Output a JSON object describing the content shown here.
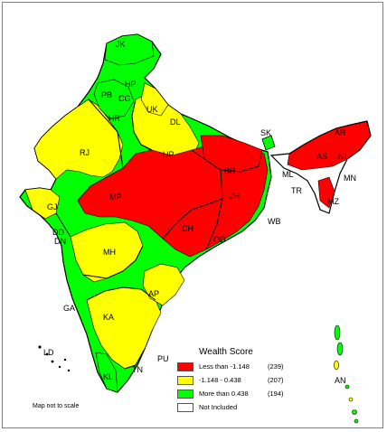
{
  "legend": {
    "title": "Wealth Score",
    "items": [
      {
        "label": "Less than -1.148",
        "count": "(239)",
        "color": "#ff0000"
      },
      {
        "label": "-1.148 - 0.438",
        "count": "(207)",
        "color": "#ffff00"
      },
      {
        "label": "More than 0.438",
        "count": "(194)",
        "color": "#00ff00"
      },
      {
        "label": "Not Included",
        "count": "",
        "color": "#ffffff"
      }
    ]
  },
  "note": "Map not to scale",
  "states": [
    "JK",
    "HP",
    "PB",
    "CG",
    "HR",
    "UK",
    "DL",
    "RJ",
    "UP",
    "GJ",
    "MP",
    "BR",
    "JH",
    "DD",
    "DN",
    "MH",
    "CH",
    "OD",
    "GA",
    "AP",
    "KA",
    "TN",
    "PU",
    "KL",
    "LD",
    "SK",
    "AR",
    "AS",
    "NL",
    "ML",
    "MN",
    "TR",
    "MZ",
    "AN",
    "WB"
  ],
  "colors": {
    "red": "#ff0000",
    "yellow": "#ffff00",
    "green": "#00ff00",
    "border": "#000000"
  }
}
